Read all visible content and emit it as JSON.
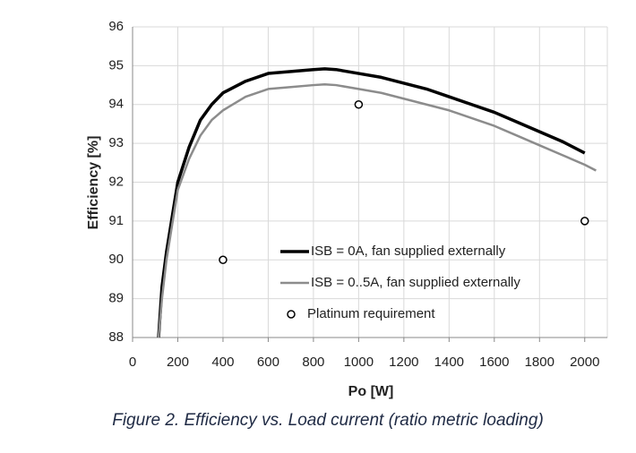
{
  "chart_data": {
    "type": "line",
    "y_label": "Efficiency [%]",
    "x_label": "Po [W]",
    "caption": "Figure 2. Efficiency vs. Load current (ratio metric loading)",
    "xlim": [
      0,
      2100
    ],
    "xticks": [
      0,
      200,
      400,
      600,
      800,
      1000,
      1200,
      1400,
      1600,
      1800,
      2000
    ],
    "ylim": [
      88,
      96
    ],
    "yticks": [
      88,
      89,
      90,
      91,
      92,
      93,
      94,
      95,
      96
    ],
    "grid": true,
    "legend": "lower-center",
    "series": [
      {
        "name": "ISB = 0A, fan supplied externally",
        "type": "line",
        "color": "#000000",
        "width": 3.5,
        "x": [
          115,
          130,
          150,
          200,
          250,
          300,
          350,
          400,
          500,
          600,
          700,
          800,
          850,
          900,
          1000,
          1100,
          1200,
          1300,
          1400,
          1500,
          1600,
          1700,
          1800,
          1900,
          2000
        ],
        "values": [
          88,
          89.3,
          90.2,
          92,
          92.9,
          93.6,
          94,
          94.3,
          94.6,
          94.8,
          94.85,
          94.9,
          94.92,
          94.9,
          94.8,
          94.7,
          94.55,
          94.4,
          94.2,
          94,
          93.8,
          93.55,
          93.3,
          93.05,
          92.75
        ]
      },
      {
        "name": "ISB = 0..5A, fan supplied externally",
        "type": "line",
        "color": "#8c8c8c",
        "width": 2.5,
        "x": [
          115,
          130,
          150,
          200,
          250,
          300,
          350,
          400,
          500,
          600,
          700,
          800,
          850,
          900,
          1000,
          1100,
          1200,
          1300,
          1400,
          1500,
          1600,
          1700,
          1800,
          1900,
          2000,
          2050
        ],
        "values": [
          88,
          89,
          90,
          91.8,
          92.6,
          93.2,
          93.6,
          93.85,
          94.2,
          94.4,
          94.45,
          94.5,
          94.52,
          94.5,
          94.4,
          94.3,
          94.15,
          94,
          93.85,
          93.65,
          93.45,
          93.2,
          92.95,
          92.7,
          92.45,
          92.3
        ]
      },
      {
        "name": "Platinum requirement",
        "type": "scatter",
        "color": "#000000",
        "x": [
          400,
          1000,
          2000
        ],
        "values": [
          90,
          94,
          91
        ]
      }
    ]
  }
}
